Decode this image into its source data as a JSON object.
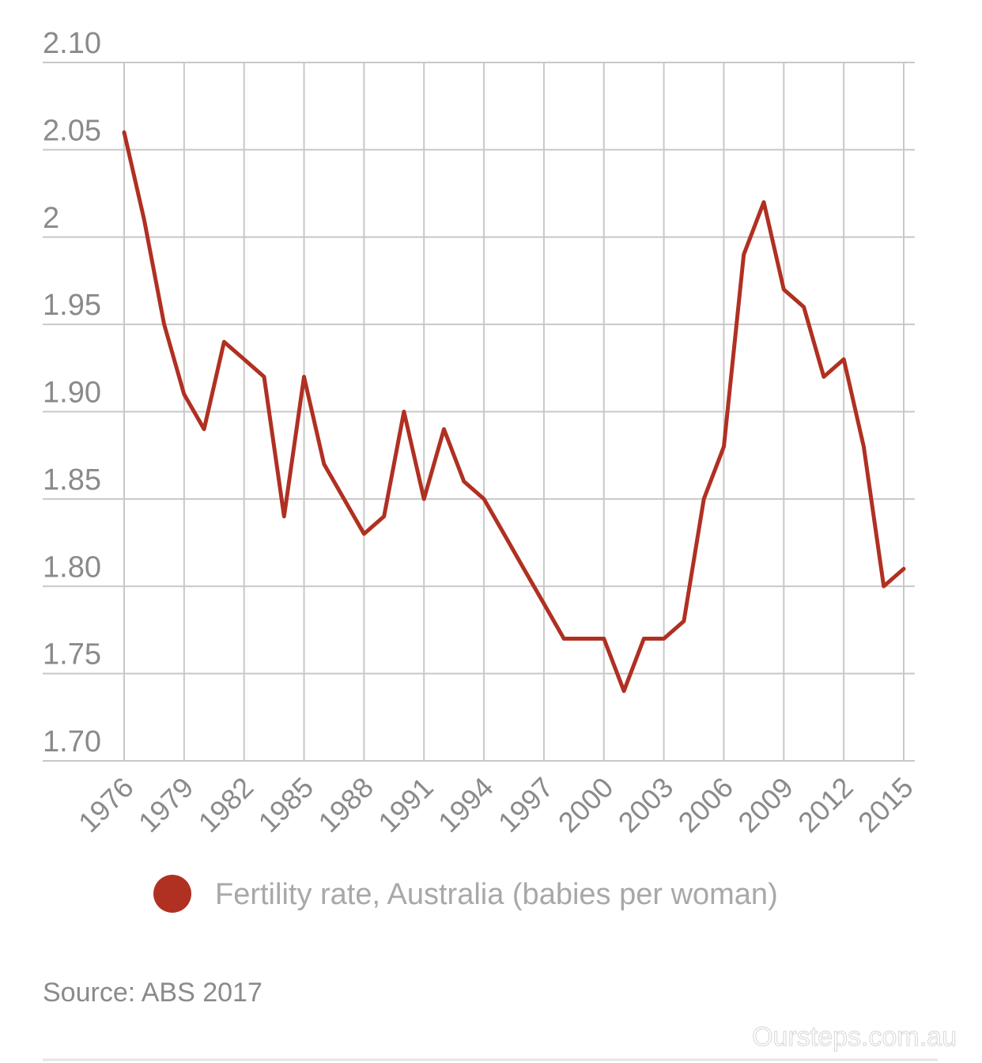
{
  "chart_data": {
    "type": "line",
    "title": "",
    "xlabel": "",
    "ylabel": "",
    "ylim": [
      1.7,
      2.1
    ],
    "xlim": [
      1976,
      2015
    ],
    "grid": true,
    "legend_placement": "bottom",
    "y_ticks": [
      "1.70",
      "1.75",
      "1.80",
      "1.85",
      "1.90",
      "1.95",
      "2",
      "2.05",
      "2.10"
    ],
    "x_ticks": [
      "1976",
      "1979",
      "1982",
      "1985",
      "1988",
      "1991",
      "1994",
      "1997",
      "2000",
      "2003",
      "2006",
      "2009",
      "2012",
      "2015"
    ],
    "series": [
      {
        "name": "Fertility rate, Australia (babies per woman)",
        "color": "#b03022",
        "x": [
          1976,
          1977,
          1978,
          1979,
          1980,
          1981,
          1982,
          1983,
          1984,
          1985,
          1986,
          1987,
          1988,
          1989,
          1990,
          1991,
          1992,
          1993,
          1994,
          1995,
          1996,
          1997,
          1998,
          1999,
          2000,
          2001,
          2002,
          2003,
          2004,
          2005,
          2006,
          2007,
          2008,
          2009,
          2010,
          2011,
          2012,
          2013,
          2014,
          2015
        ],
        "values": [
          2.06,
          2.01,
          1.95,
          1.91,
          1.89,
          1.94,
          1.93,
          1.92,
          1.84,
          1.92,
          1.87,
          1.85,
          1.83,
          1.84,
          1.9,
          1.85,
          1.89,
          1.86,
          1.85,
          1.83,
          1.81,
          1.79,
          1.77,
          1.77,
          1.77,
          1.74,
          1.77,
          1.77,
          1.78,
          1.85,
          1.88,
          1.99,
          2.02,
          1.97,
          1.96,
          1.92,
          1.93,
          1.88,
          1.8,
          1.81
        ]
      }
    ]
  },
  "source": "Source: ABS 2017",
  "watermark": "Oursteps.com.au",
  "colors": {
    "grid": "#c8c8c8",
    "axis_text": "#8a8a8a",
    "legend_text": "#a8a8a8",
    "line": "#b03022"
  }
}
